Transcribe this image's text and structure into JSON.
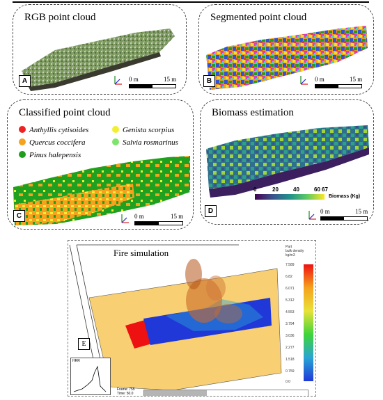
{
  "panels": {
    "a": {
      "title": "RGB point cloud",
      "tag": "A",
      "scale_start": "0 m",
      "scale_end": "15 m"
    },
    "b": {
      "title": "Segmented point cloud",
      "tag": "B",
      "scale_start": "0 m",
      "scale_end": "15 m"
    },
    "c": {
      "title": "Classified point cloud",
      "tag": "C",
      "scale_start": "0 m",
      "scale_end": "15 m",
      "legend": [
        {
          "label": "Anthyllis cytisoides",
          "color": "#ee2222"
        },
        {
          "label": "Genista scorpius",
          "color": "#f2ee33"
        },
        {
          "label": "Quercus coccifera",
          "color": "#f5a21e"
        },
        {
          "label": "Salvia rosmarinus",
          "color": "#7ee46b"
        },
        {
          "label": "Pinus halepensis",
          "color": "#1d9e1d"
        }
      ]
    },
    "d": {
      "title": "Biomass estimation",
      "tag": "D",
      "scale_start": "0 m",
      "scale_end": "15 m",
      "colorbar_ticks": [
        "0",
        "20",
        "40",
        "60",
        "67"
      ],
      "colorbar_label": "Biomass (Kg)"
    },
    "e": {
      "title": "Fire simulation",
      "tag": "E",
      "cbar_title_1": "Part",
      "cbar_title_2": "bulk density",
      "cbar_title_3": "kg/m3",
      "cbar_ticks": [
        "7.589",
        "6.82",
        "6.071",
        "5.312",
        "4.553",
        "3.794",
        "3.036",
        "2.277",
        "1.518",
        "0.759",
        "0.0"
      ],
      "hrr_label": "HRR",
      "frame_text": "Frame: 755",
      "time_text": "Time: 50.0"
    }
  },
  "axis_letters": {
    "x": "X",
    "y": "Y",
    "z": "Z"
  }
}
